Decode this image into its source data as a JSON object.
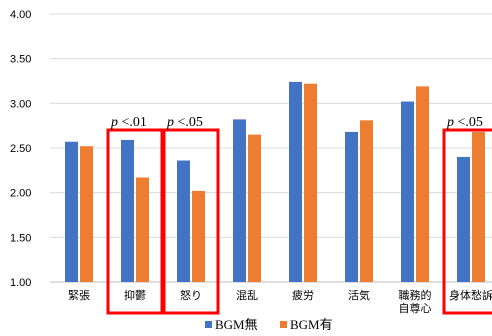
{
  "chart_data": {
    "type": "bar",
    "categories": [
      "緊張",
      "抑鬱",
      "怒り",
      "混乱",
      "疲労",
      "活気",
      "職務的\n自尊心",
      "身体愁訴"
    ],
    "series": [
      {
        "name": "BGM無",
        "color": "#4472C4",
        "values": [
          2.57,
          2.59,
          2.36,
          2.82,
          3.24,
          2.68,
          3.02,
          2.4
        ]
      },
      {
        "name": "BGM有",
        "color": "#ED7D31",
        "values": [
          2.52,
          2.17,
          2.02,
          2.65,
          3.22,
          2.81,
          3.19,
          2.68
        ]
      }
    ],
    "ylim": [
      1.0,
      4.0
    ],
    "yticks": [
      "1.00",
      "1.50",
      "2.00",
      "2.50",
      "3.00",
      "3.50",
      "4.00"
    ],
    "grid": true,
    "legend_position": "bottom",
    "annotations": [
      {
        "category": "抑鬱",
        "label": "p <.01",
        "highlight_color": "#FF0000"
      },
      {
        "category": "怒り",
        "label": "p <.05",
        "highlight_color": "#FF0000"
      },
      {
        "category": "身体愁訴",
        "label": "p <.05",
        "highlight_color": "#FF0000"
      }
    ]
  }
}
